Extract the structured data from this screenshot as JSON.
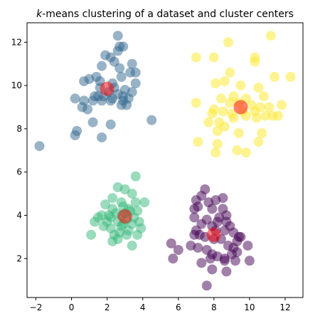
{
  "chart_data": {
    "type": "scatter",
    "title": "k-means clustering of a dataset and cluster centers",
    "title_prefix": "k",
    "title_rest": "-means clustering of a dataset and cluster centers",
    "xlabel": "",
    "ylabel": "",
    "xlim": [
      -2.5,
      13.0
    ],
    "ylim": [
      0.2,
      12.9
    ],
    "xticks": [
      -2,
      0,
      2,
      4,
      6,
      8,
      10,
      12
    ],
    "yticks": [
      2,
      4,
      6,
      8,
      10,
      12
    ],
    "xtick_labels": [
      "−2",
      "0",
      "2",
      "4",
      "6",
      "8",
      "10",
      "12"
    ],
    "ytick_labels": [
      "2",
      "4",
      "6",
      "8",
      "10",
      "12"
    ],
    "grid": false,
    "legend": "none",
    "series": [
      {
        "color": "#440154",
        "points": [
          [
            7.5,
            5.2
          ],
          [
            7.3,
            4.9
          ],
          [
            7.0,
            4.7
          ],
          [
            7.1,
            4.4
          ],
          [
            7.7,
            4.6
          ],
          [
            8.1,
            4.7
          ],
          [
            7.9,
            4.3
          ],
          [
            8.5,
            4.3
          ],
          [
            8.7,
            4.0
          ],
          [
            8.5,
            4.8
          ],
          [
            6.9,
            4.3
          ],
          [
            6.9,
            3.9
          ],
          [
            7.3,
            3.6
          ],
          [
            7.6,
            3.8
          ],
          [
            8.3,
            3.9
          ],
          [
            8.7,
            3.7
          ],
          [
            7.9,
            3.5
          ],
          [
            8.1,
            3.3
          ],
          [
            8.6,
            3.3
          ],
          [
            8.9,
            3.5
          ],
          [
            9.1,
            3.2
          ],
          [
            9.4,
            3.0
          ],
          [
            7.0,
            3.3
          ],
          [
            7.2,
            3.1
          ],
          [
            7.5,
            3.0
          ],
          [
            8.0,
            2.9
          ],
          [
            8.4,
            2.9
          ],
          [
            8.8,
            2.6
          ],
          [
            9.1,
            2.5
          ],
          [
            9.3,
            2.8
          ],
          [
            6.7,
            2.6
          ],
          [
            7.1,
            2.5
          ],
          [
            7.6,
            2.4
          ],
          [
            7.9,
            2.2
          ],
          [
            8.2,
            2.1
          ],
          [
            8.6,
            2.0
          ],
          [
            9.0,
            2.2
          ],
          [
            9.3,
            2.3
          ],
          [
            5.6,
            2.7
          ],
          [
            6.0,
            2.4
          ],
          [
            5.7,
            2.0
          ],
          [
            7.8,
            2.0
          ],
          [
            7.3,
            1.8
          ],
          [
            8.6,
            1.9
          ],
          [
            9.9,
            2.6
          ],
          [
            10.0,
            1.9
          ],
          [
            7.9,
            1.5
          ],
          [
            8.7,
            1.4
          ],
          [
            9.5,
            3.0
          ],
          [
            9.2,
            1.9
          ],
          [
            7.6,
            0.75
          ],
          [
            6.9,
            3.1
          ],
          [
            8.2,
            3.7
          ]
        ]
      },
      {
        "color": "#31688e",
        "points": [
          [
            2.6,
            12.3
          ],
          [
            2.7,
            11.8
          ],
          [
            2.9,
            11.8
          ],
          [
            2.6,
            11.6
          ],
          [
            1.9,
            11.4
          ],
          [
            2.2,
            11.3
          ],
          [
            2.4,
            11.1
          ],
          [
            1.7,
            10.9
          ],
          [
            2.7,
            10.8
          ],
          [
            3.4,
            11.0
          ],
          [
            3.3,
            10.6
          ],
          [
            3.6,
            10.6
          ],
          [
            2.8,
            10.4
          ],
          [
            1.4,
            10.4
          ],
          [
            1.0,
            10.3
          ],
          [
            0.7,
            10.2
          ],
          [
            1.6,
            10.2
          ],
          [
            2.3,
            10.1
          ],
          [
            3.6,
            10.1
          ],
          [
            3.0,
            9.8
          ],
          [
            1.6,
            9.9
          ],
          [
            2.1,
            9.7
          ],
          [
            2.6,
            9.6
          ],
          [
            3.4,
            9.7
          ],
          [
            1.3,
            9.5
          ],
          [
            1.8,
            9.5
          ],
          [
            2.3,
            9.4
          ],
          [
            2.9,
            9.5
          ],
          [
            3.2,
            9.4
          ],
          [
            0.2,
            9.4
          ],
          [
            0.7,
            9.3
          ],
          [
            1.2,
            9.3
          ],
          [
            1.7,
            9.3
          ],
          [
            2.2,
            9.3
          ],
          [
            0.6,
            9.0
          ],
          [
            0.9,
            8.9
          ],
          [
            2.8,
            9.1
          ],
          [
            2.9,
            9.3
          ],
          [
            1.2,
            8.3
          ],
          [
            2.2,
            8.2
          ],
          [
            4.5,
            8.4
          ],
          [
            0.3,
            7.9
          ],
          [
            0.2,
            7.7
          ],
          [
            1.7,
            7.6
          ],
          [
            -1.8,
            7.2
          ],
          [
            1.5,
            9.5
          ],
          [
            2.4,
            9.9
          ],
          [
            3.1,
            9.1
          ]
        ]
      },
      {
        "color": "#35b779",
        "points": [
          [
            3.6,
            5.8
          ],
          [
            2.6,
            5.3
          ],
          [
            3.0,
            5.2
          ],
          [
            3.4,
            5.0
          ],
          [
            2.3,
            4.8
          ],
          [
            2.8,
            4.6
          ],
          [
            3.6,
            4.6
          ],
          [
            4.1,
            4.6
          ],
          [
            1.9,
            4.5
          ],
          [
            2.3,
            4.3
          ],
          [
            2.9,
            4.4
          ],
          [
            3.2,
            4.3
          ],
          [
            3.7,
            4.2
          ],
          [
            1.7,
            4.0
          ],
          [
            2.1,
            4.0
          ],
          [
            2.5,
            4.1
          ],
          [
            3.0,
            4.1
          ],
          [
            3.5,
            3.9
          ],
          [
            1.5,
            3.9
          ],
          [
            2.0,
            3.7
          ],
          [
            2.6,
            3.7
          ],
          [
            3.1,
            3.8
          ],
          [
            3.4,
            3.6
          ],
          [
            1.3,
            3.7
          ],
          [
            1.8,
            3.5
          ],
          [
            2.2,
            3.4
          ],
          [
            2.8,
            3.5
          ],
          [
            3.2,
            3.3
          ],
          [
            3.9,
            3.4
          ],
          [
            2.4,
            3.1
          ],
          [
            2.7,
            3.2
          ],
          [
            3.1,
            3.1
          ],
          [
            1.1,
            3.1
          ],
          [
            3.7,
            3.1
          ],
          [
            2.3,
            2.8
          ],
          [
            2.6,
            2.9
          ],
          [
            3.4,
            2.6
          ],
          [
            2.8,
            4.0
          ],
          [
            3.3,
            4.2
          ],
          [
            2.2,
            3.9
          ],
          [
            2.9,
            3.6
          ],
          [
            3.8,
            3.7
          ]
        ]
      },
      {
        "color": "#fde725",
        "points": [
          [
            11.2,
            12.3
          ],
          [
            8.8,
            12.0
          ],
          [
            7.0,
            11.3
          ],
          [
            8.0,
            11.3
          ],
          [
            10.3,
            11.3
          ],
          [
            10.3,
            11.1
          ],
          [
            8.9,
            10.6
          ],
          [
            11.4,
            10.4
          ],
          [
            12.3,
            10.4
          ],
          [
            8.6,
            10.2
          ],
          [
            8.1,
            10.1
          ],
          [
            9.5,
            10.0
          ],
          [
            10.5,
            9.9
          ],
          [
            8.4,
            9.4
          ],
          [
            9.1,
            9.5
          ],
          [
            9.8,
            9.4
          ],
          [
            10.8,
            9.5
          ],
          [
            8.9,
            9.2
          ],
          [
            9.4,
            9.2
          ],
          [
            10.1,
            9.1
          ],
          [
            10.6,
            9.0
          ],
          [
            7.0,
            9.2
          ],
          [
            8.0,
            8.9
          ],
          [
            8.5,
            8.8
          ],
          [
            9.0,
            8.7
          ],
          [
            9.6,
            8.8
          ],
          [
            10.3,
            8.8
          ],
          [
            11.1,
            9.0
          ],
          [
            11.8,
            9.1
          ],
          [
            7.9,
            8.7
          ],
          [
            8.3,
            8.3
          ],
          [
            9.1,
            8.5
          ],
          [
            9.8,
            8.6
          ],
          [
            10.4,
            8.5
          ],
          [
            10.9,
            8.6
          ],
          [
            11.3,
            8.6
          ],
          [
            11.6,
            8.6
          ],
          [
            7.7,
            8.3
          ],
          [
            8.2,
            7.9
          ],
          [
            8.6,
            8.1
          ],
          [
            9.4,
            7.8
          ],
          [
            10.7,
            7.8
          ],
          [
            7.1,
            7.4
          ],
          [
            8.2,
            7.3
          ],
          [
            9.3,
            7.0
          ],
          [
            9.8,
            6.9
          ],
          [
            10.5,
            7.4
          ],
          [
            8.1,
            6.9
          ]
        ]
      }
    ],
    "centers": {
      "color": "#ff0000",
      "points": [
        [
          7.99,
          3.1
        ],
        [
          2.0,
          9.85
        ],
        [
          3.0,
          3.95
        ],
        [
          9.5,
          9.0
        ]
      ]
    }
  }
}
